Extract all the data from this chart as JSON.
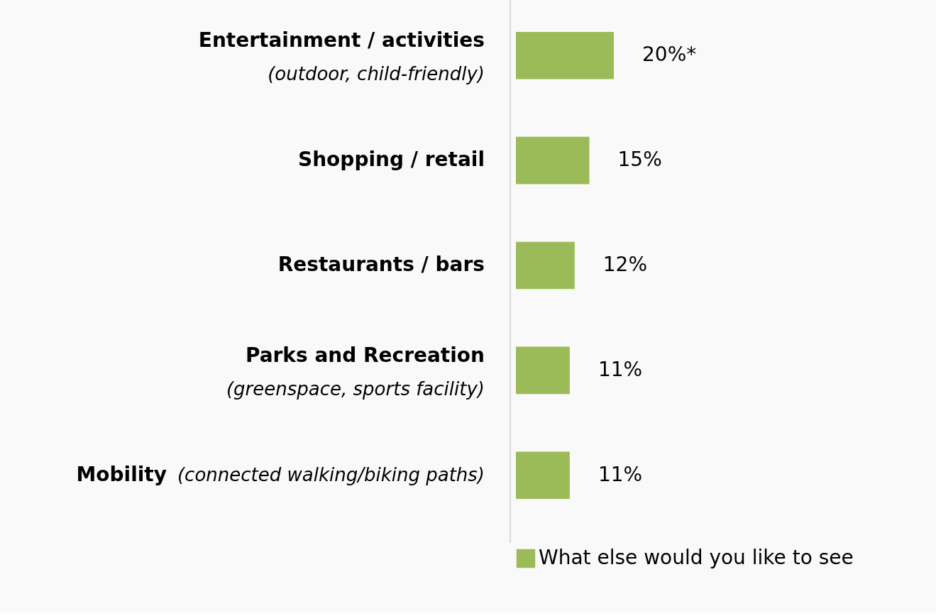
{
  "chart_data": {
    "type": "bar",
    "orientation": "horizontal",
    "categories": [
      "Entertainment / activities\n(outdoor, child-friendly)",
      "Shopping / retail",
      "Restaurants / bars",
      "Parks and Recreation\n(greenspace, sports facility)",
      "Mobility (connected walking/biking paths)"
    ],
    "series": [
      {
        "name": "What else would you like to see",
        "color": "#9bbb59",
        "values": [
          20,
          15,
          12,
          11,
          11
        ],
        "value_labels": [
          "20%*",
          "15%",
          "12%",
          "11%",
          "11%"
        ]
      }
    ],
    "legend": "bottom",
    "grid": false
  }
}
